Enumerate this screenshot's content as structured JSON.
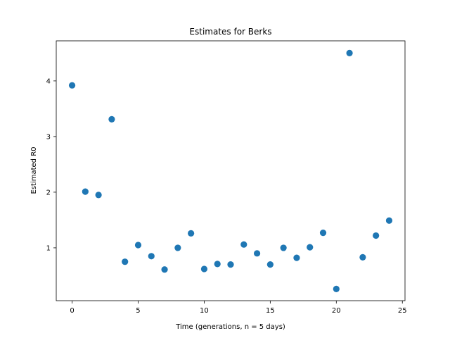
{
  "chart_data": {
    "type": "scatter",
    "title": "Estimates for Berks",
    "xlabel": "Time (generations, n = 5 days)",
    "ylabel": "Estimated R0",
    "xlim": [
      -1.2,
      25.2
    ],
    "ylim": [
      0.05,
      4.72
    ],
    "xticks": [
      0,
      5,
      10,
      15,
      20,
      25
    ],
    "yticks": [
      1,
      2,
      3,
      4
    ],
    "grid": false,
    "marker_color": "#1f77b4",
    "series": [
      {
        "x": [
          0,
          1,
          2,
          3,
          4,
          5,
          6,
          7,
          8,
          9,
          10,
          11,
          12,
          13,
          14,
          15,
          16,
          17,
          18,
          19,
          20,
          21,
          22,
          23,
          24
        ],
        "y": [
          3.92,
          2.01,
          1.95,
          3.31,
          0.75,
          1.05,
          0.85,
          0.61,
          1.0,
          1.26,
          0.62,
          0.71,
          0.7,
          1.06,
          0.9,
          0.7,
          1.0,
          0.82,
          1.01,
          1.27,
          0.26,
          4.5,
          0.83,
          1.22,
          1.49
        ]
      }
    ]
  }
}
